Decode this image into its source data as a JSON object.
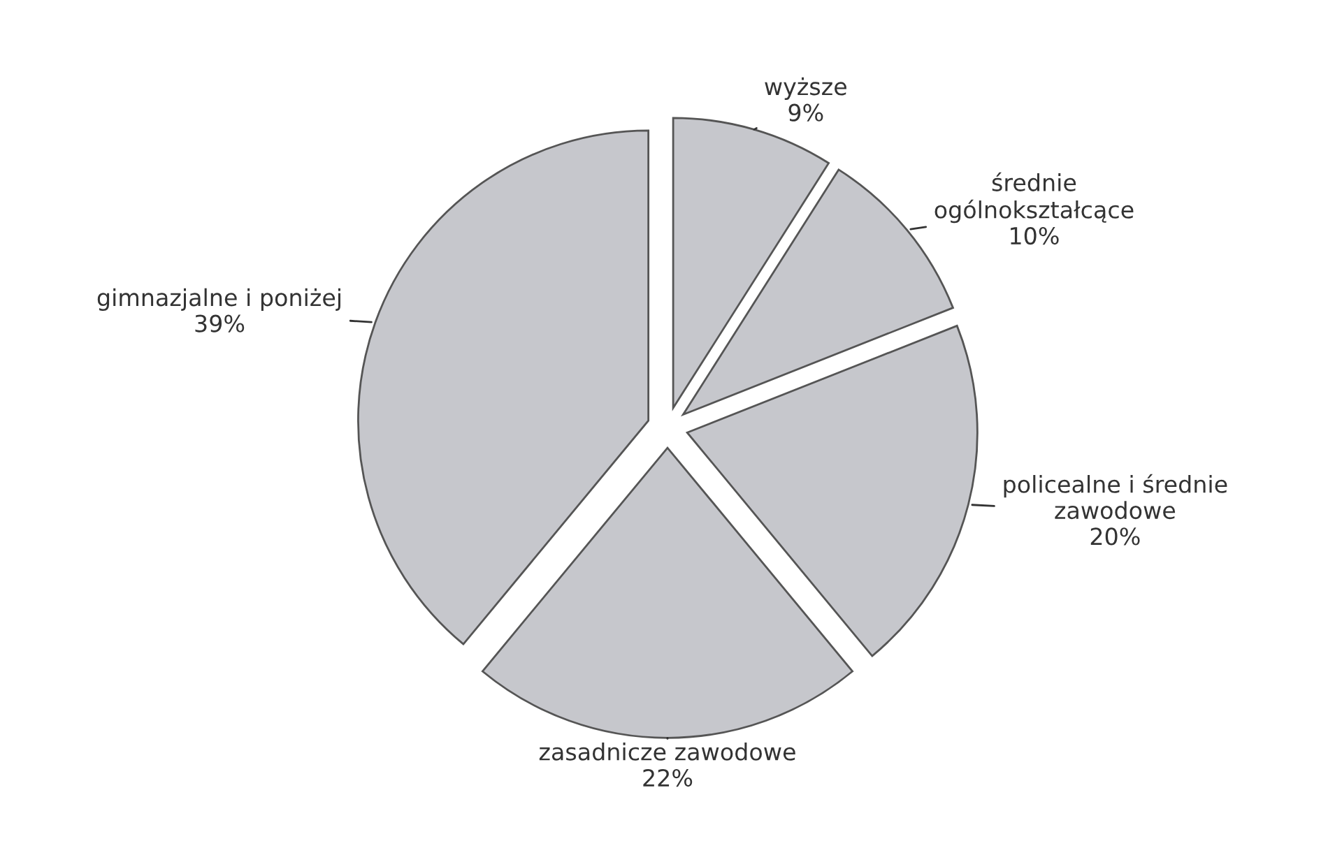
{
  "chart_data": {
    "type": "pie",
    "categories": [
      "wyższe",
      "średnie\nogólnokształcące",
      "policealne i średnie\nzawodowe",
      "zasadnicze zawodowe",
      "gimnazjalne i poniżej"
    ],
    "values": [
      9,
      10,
      20,
      22,
      39
    ],
    "value_labels": [
      "9%",
      "10%",
      "20%",
      "22%",
      "39%"
    ],
    "colors": [
      "#c6c7cc",
      "#c6c7cc",
      "#c6c7cc",
      "#c6c7cc",
      "#c6c7cc"
    ]
  }
}
